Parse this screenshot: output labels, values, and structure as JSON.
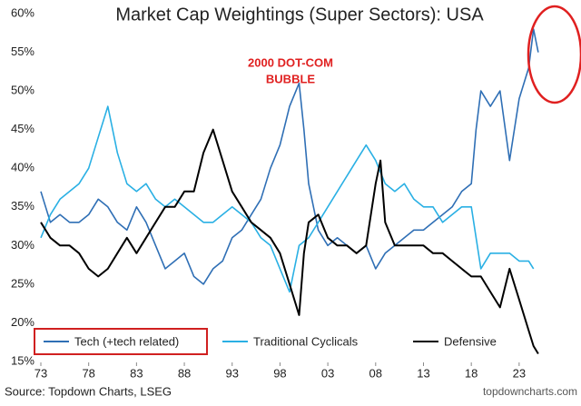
{
  "chart_data": {
    "type": "line",
    "title": "Market Cap Weightings (Super Sectors): USA",
    "source": "Source: Topdown Charts, LSEG",
    "watermark": "topdowncharts.com",
    "annotations": [
      "2000 DOT-COM",
      "BUBBLE"
    ],
    "xlim": [
      1973,
      2027
    ],
    "xticks": [
      {
        "value": 1973,
        "label": "73"
      },
      {
        "value": 1978,
        "label": "78"
      },
      {
        "value": 1983,
        "label": "83"
      },
      {
        "value": 1988,
        "label": "88"
      },
      {
        "value": 1993,
        "label": "93"
      },
      {
        "value": 1998,
        "label": "98"
      },
      {
        "value": 2003,
        "label": "03"
      },
      {
        "value": 2008,
        "label": "08"
      },
      {
        "value": 2013,
        "label": "13"
      },
      {
        "value": 2018,
        "label": "18"
      },
      {
        "value": 2023,
        "label": "23"
      }
    ],
    "ylim": [
      15,
      60
    ],
    "yticks": [
      {
        "value": 15,
        "label": "15%"
      },
      {
        "value": 20,
        "label": "20%"
      },
      {
        "value": 25,
        "label": "25%"
      },
      {
        "value": 30,
        "label": "30%"
      },
      {
        "value": 35,
        "label": "35%"
      },
      {
        "value": 40,
        "label": "40%"
      },
      {
        "value": 45,
        "label": "45%"
      },
      {
        "value": 50,
        "label": "50%"
      },
      {
        "value": 55,
        "label": "55%"
      },
      {
        "value": 60,
        "label": "60%"
      }
    ],
    "grid": false,
    "legend": "bottom",
    "series": [
      {
        "name": "Tech (+tech related)",
        "color": "#2f6fb5",
        "x": [
          1973,
          1974,
          1975,
          1976,
          1977,
          1978,
          1979,
          1980,
          1981,
          1982,
          1983,
          1984,
          1985,
          1986,
          1987,
          1988,
          1989,
          1990,
          1991,
          1992,
          1993,
          1994,
          1995,
          1996,
          1997,
          1998,
          1999,
          2000,
          2000.5,
          2001,
          2002,
          2003,
          2004,
          2005,
          2006,
          2007,
          2008,
          2009,
          2010,
          2011,
          2012,
          2013,
          2014,
          2015,
          2016,
          2017,
          2018,
          2018.5,
          2019,
          2020,
          2021,
          2022,
          2023,
          2024,
          2024.5,
          2025
        ],
        "values": [
          37,
          33,
          34,
          33,
          33,
          34,
          36,
          35,
          33,
          32,
          35,
          33,
          30,
          27,
          28,
          29,
          26,
          25,
          27,
          28,
          31,
          32,
          34,
          36,
          40,
          43,
          48,
          51,
          45,
          38,
          32,
          30,
          31,
          30,
          29,
          30,
          27,
          29,
          30,
          31,
          32,
          32,
          33,
          34,
          35,
          37,
          38,
          45,
          50,
          48,
          50,
          41,
          49,
          53,
          58,
          55
        ]
      },
      {
        "name": "Traditional Cyclicals",
        "color": "#2ab0e4",
        "x": [
          1973,
          1974,
          1975,
          1976,
          1977,
          1978,
          1979,
          1980,
          1981,
          1982,
          1983,
          1984,
          1985,
          1986,
          1987,
          1988,
          1989,
          1990,
          1991,
          1992,
          1993,
          1994,
          1995,
          1996,
          1997,
          1998,
          1999,
          2000,
          2001,
          2002,
          2003,
          2004,
          2005,
          2006,
          2007,
          2008,
          2009,
          2010,
          2011,
          2012,
          2013,
          2014,
          2015,
          2016,
          2017,
          2018,
          2019,
          2020,
          2021,
          2022,
          2023,
          2024,
          2024.5
        ],
        "values": [
          31,
          34,
          36,
          37,
          38,
          40,
          44,
          48,
          42,
          38,
          37,
          38,
          36,
          35,
          36,
          35,
          34,
          33,
          33,
          34,
          35,
          34,
          33,
          31,
          30,
          27,
          24,
          30,
          31,
          33,
          35,
          37,
          39,
          41,
          43,
          41,
          38,
          37,
          38,
          36,
          35,
          35,
          33,
          34,
          35,
          35,
          27,
          29,
          29,
          29,
          28,
          28,
          27
        ]
      },
      {
        "name": "Defensive",
        "color": "#000000",
        "x": [
          1973,
          1974,
          1975,
          1976,
          1977,
          1978,
          1979,
          1980,
          1981,
          1982,
          1983,
          1984,
          1985,
          1986,
          1987,
          1988,
          1989,
          1990,
          1991,
          1992,
          1993,
          1994,
          1995,
          1996,
          1997,
          1998,
          1999,
          2000,
          2000.5,
          2001,
          2002,
          2003,
          2004,
          2005,
          2006,
          2007,
          2008,
          2008.5,
          2009,
          2010,
          2011,
          2012,
          2013,
          2014,
          2015,
          2016,
          2017,
          2018,
          2019,
          2020,
          2021,
          2022,
          2023,
          2024,
          2024.5,
          2025
        ],
        "values": [
          33,
          31,
          30,
          30,
          29,
          27,
          26,
          27,
          29,
          31,
          29,
          31,
          33,
          35,
          35,
          37,
          37,
          42,
          45,
          41,
          37,
          35,
          33,
          32,
          31,
          29,
          25,
          21,
          29,
          33,
          34,
          31,
          30,
          30,
          29,
          30,
          38,
          41,
          33,
          30,
          30,
          30,
          30,
          29,
          29,
          28,
          27,
          26,
          26,
          24,
          22,
          27,
          23,
          19,
          17,
          16
        ]
      }
    ]
  }
}
